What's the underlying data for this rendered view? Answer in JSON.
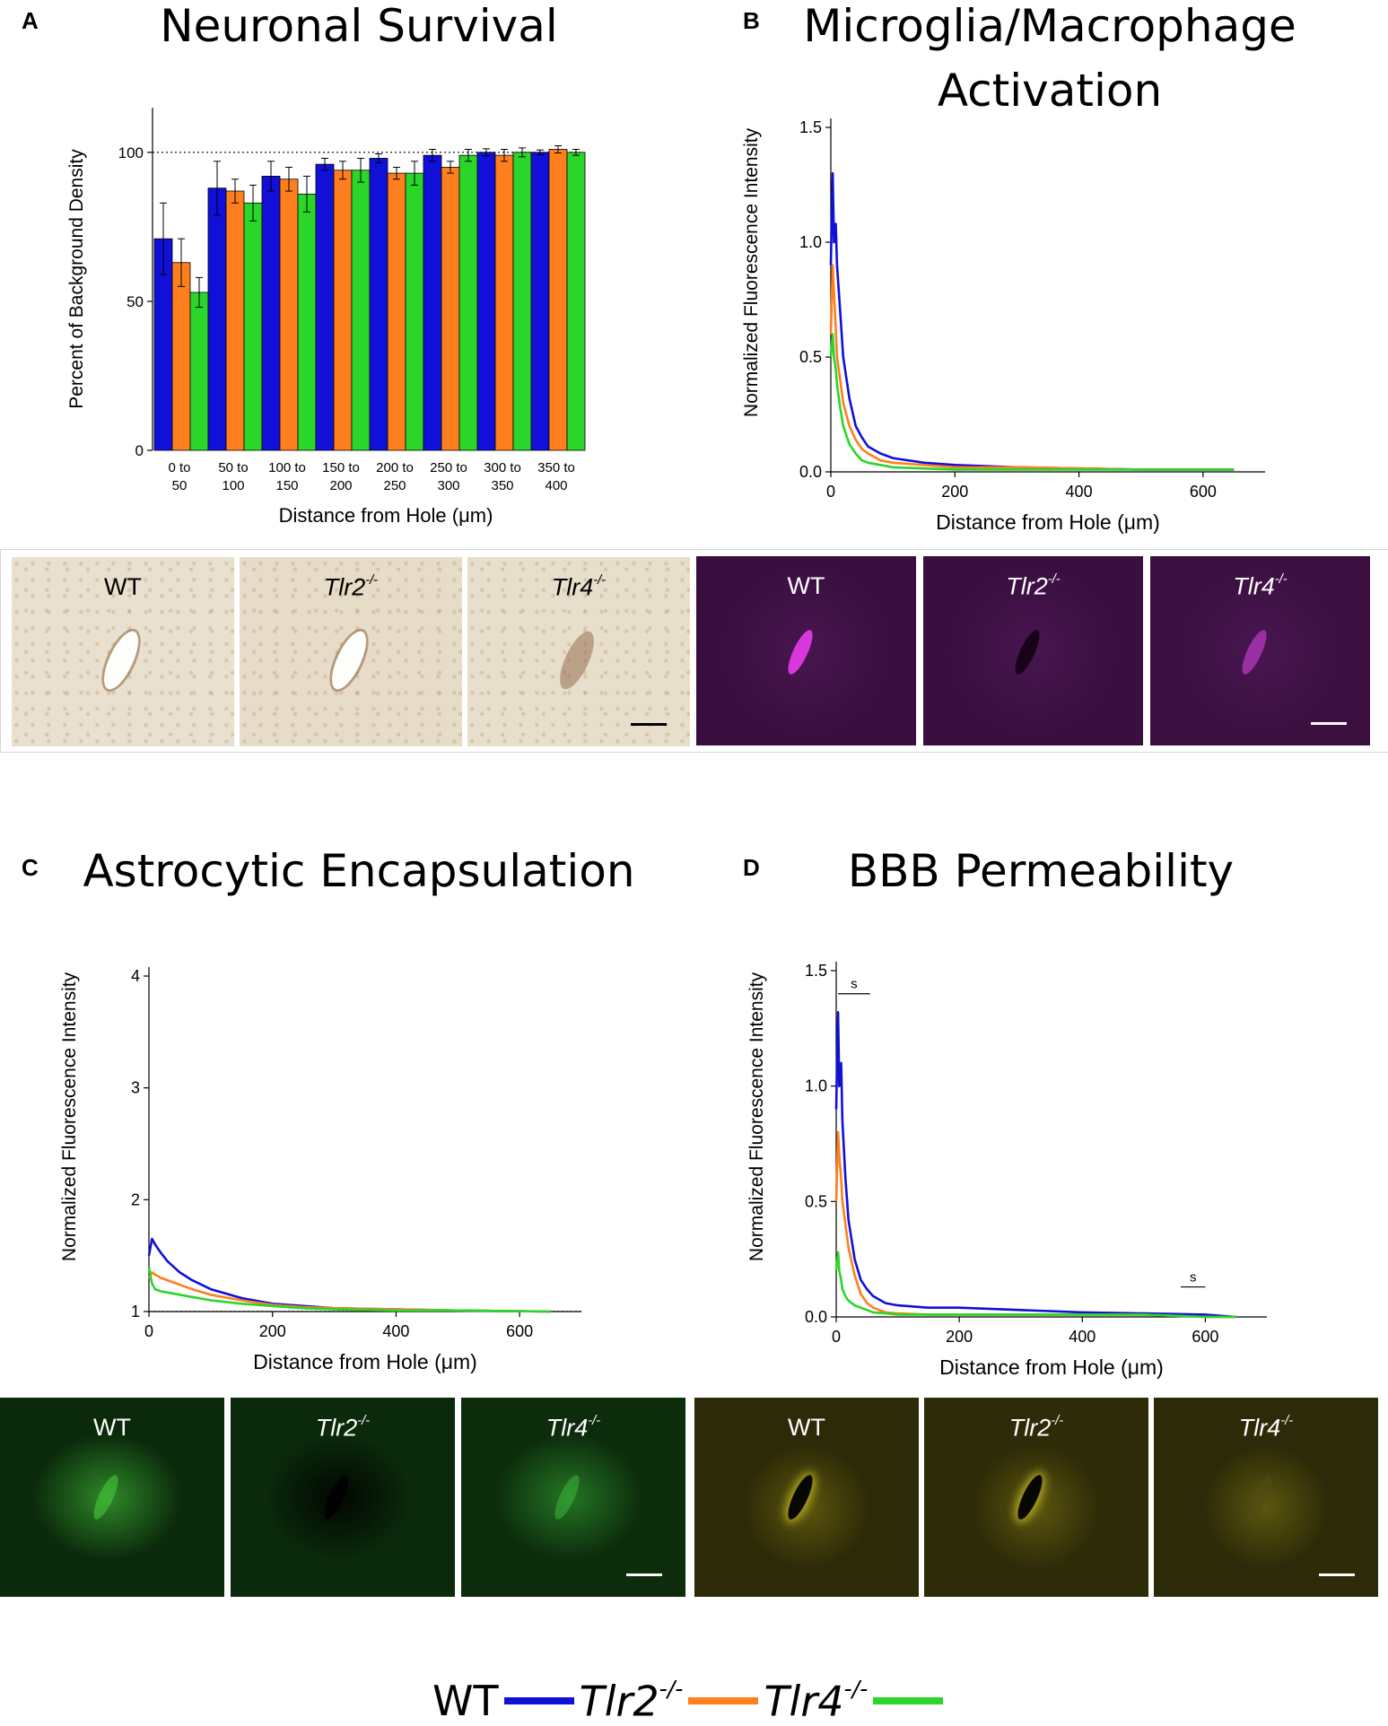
{
  "panels": {
    "A": {
      "letter": "A",
      "title": "Neuronal Survival"
    },
    "B": {
      "letter": "B",
      "title_line1": "Microglia/Macrophage",
      "title_line2": "Activation"
    },
    "C": {
      "letter": "C",
      "title": "Astrocytic Encapsulation"
    },
    "D": {
      "letter": "D",
      "title": "BBB Permeability"
    }
  },
  "genotype_labels": {
    "wt": "WT",
    "tlr2": "Tlr2",
    "tlr4": "Tlr4",
    "ko_sup": "-/-"
  },
  "colors": {
    "wt": "#1010d8",
    "tlr2": "#ff7f1e",
    "tlr4": "#2ad62a",
    "scalebar_dark": "#000000",
    "scalebar_light": "#ffffff"
  },
  "chart_data": [
    {
      "id": "A",
      "type": "bar",
      "title": "Neuronal Survival",
      "xlabel": "Distance from Hole (μm)",
      "ylabel": "Percent of Background Density",
      "ylim": [
        0,
        115
      ],
      "yticks": [
        0,
        50,
        100
      ],
      "reference_line": 100,
      "categories": [
        [
          "0 to",
          "50"
        ],
        [
          "50 to",
          "100"
        ],
        [
          "100 to",
          "150"
        ],
        [
          "150 to",
          "200"
        ],
        [
          "200 to",
          "250"
        ],
        [
          "250 to",
          "300"
        ],
        [
          "300 to",
          "350"
        ],
        [
          "350 to",
          "400"
        ]
      ],
      "series": [
        {
          "name": "WT",
          "color": "#1010d8",
          "values": [
            71,
            88,
            92,
            96,
            98,
            99,
            100,
            100
          ],
          "errors": [
            12,
            9,
            5,
            2,
            1.5,
            2,
            1.2,
            0.8
          ]
        },
        {
          "name": "Tlr2-/-",
          "color": "#ff7f1e",
          "values": [
            63,
            87,
            91,
            94,
            93,
            95,
            99,
            101
          ],
          "errors": [
            8,
            4,
            4,
            3,
            2,
            2,
            2,
            1.2
          ]
        },
        {
          "name": "Tlr4-/-",
          "color": "#2ad62a",
          "values": [
            53,
            83,
            86,
            94,
            93,
            99,
            100,
            100
          ],
          "errors": [
            5,
            6,
            6,
            4,
            4,
            2,
            1.5,
            1
          ]
        }
      ]
    },
    {
      "id": "B",
      "type": "line",
      "title": "Microglia/Macrophage Activation",
      "xlabel": "Distance from Hole (μm)",
      "ylabel": "Normalized Fluorescence Intensity",
      "xlim": [
        0,
        700
      ],
      "xticks": [
        0,
        200,
        400,
        600
      ],
      "ylim": [
        0,
        1.5
      ],
      "yticks": [
        0.0,
        0.5,
        1.0,
        1.5
      ],
      "ytick_labels": [
        "0.0",
        "0.5",
        "1.0",
        "1.5"
      ],
      "series": [
        {
          "name": "WT",
          "color": "#1010d8",
          "x": [
            0,
            3,
            5,
            8,
            10,
            15,
            20,
            30,
            40,
            50,
            60,
            80,
            100,
            150,
            200,
            300,
            400,
            500,
            650
          ],
          "y": [
            0.9,
            1.3,
            1.0,
            1.08,
            0.9,
            0.7,
            0.5,
            0.32,
            0.2,
            0.15,
            0.11,
            0.08,
            0.06,
            0.04,
            0.03,
            0.02,
            0.015,
            0.01,
            0.01
          ]
        },
        {
          "name": "Tlr2-/-",
          "color": "#ff7f1e",
          "x": [
            0,
            3,
            5,
            8,
            10,
            15,
            20,
            30,
            40,
            50,
            60,
            80,
            100,
            150,
            200,
            300,
            400,
            500,
            650
          ],
          "y": [
            0.6,
            0.9,
            0.78,
            0.62,
            0.5,
            0.4,
            0.3,
            0.2,
            0.14,
            0.1,
            0.08,
            0.05,
            0.04,
            0.03,
            0.02,
            0.02,
            0.015,
            0.01,
            0.01
          ]
        },
        {
          "name": "Tlr4-/-",
          "color": "#2ad62a",
          "x": [
            0,
            3,
            5,
            8,
            10,
            15,
            20,
            30,
            40,
            50,
            60,
            80,
            100,
            150,
            200,
            300,
            400,
            500,
            650
          ],
          "y": [
            0.5,
            0.6,
            0.5,
            0.45,
            0.38,
            0.28,
            0.2,
            0.12,
            0.08,
            0.05,
            0.04,
            0.03,
            0.02,
            0.015,
            0.01,
            0.01,
            0.01,
            0.01,
            0.01
          ]
        }
      ]
    },
    {
      "id": "C",
      "type": "line",
      "title": "Astrocytic Encapsulation",
      "xlabel": "Distance from Hole (μm)",
      "ylabel": "Normalized Fluorescence Intensity",
      "xlim": [
        0,
        700
      ],
      "xticks": [
        0,
        200,
        400,
        600
      ],
      "ylim": [
        1,
        4
      ],
      "yticks": [
        1,
        2,
        3,
        4
      ],
      "ytick_labels": [
        "1",
        "2",
        "3",
        "4"
      ],
      "reference_line": 1,
      "series": [
        {
          "name": "WT",
          "color": "#1010d8",
          "x": [
            0,
            5,
            10,
            20,
            30,
            50,
            70,
            100,
            150,
            200,
            250,
            300,
            400,
            500,
            650
          ],
          "y": [
            1.5,
            1.65,
            1.6,
            1.52,
            1.45,
            1.35,
            1.28,
            1.2,
            1.12,
            1.07,
            1.05,
            1.03,
            1.02,
            1.01,
            1.0
          ]
        },
        {
          "name": "Tlr2-/-",
          "color": "#ff7f1e",
          "x": [
            0,
            5,
            10,
            20,
            30,
            50,
            70,
            100,
            150,
            200,
            250,
            300,
            400,
            500,
            650
          ],
          "y": [
            1.3,
            1.35,
            1.33,
            1.3,
            1.28,
            1.24,
            1.2,
            1.15,
            1.1,
            1.06,
            1.04,
            1.03,
            1.02,
            1.01,
            1.0
          ]
        },
        {
          "name": "Tlr4-/-",
          "color": "#2ad62a",
          "x": [
            0,
            5,
            10,
            20,
            30,
            50,
            70,
            100,
            150,
            200,
            250,
            300,
            400,
            500,
            650
          ],
          "y": [
            1.4,
            1.25,
            1.2,
            1.18,
            1.17,
            1.15,
            1.13,
            1.1,
            1.07,
            1.05,
            1.03,
            1.02,
            1.01,
            1.01,
            1.0
          ]
        }
      ]
    },
    {
      "id": "D",
      "type": "line",
      "title": "BBB Permeability",
      "xlabel": "Distance from Hole (μm)",
      "ylabel": "Normalized Fluorescence Intensity",
      "xlim": [
        0,
        700
      ],
      "xticks": [
        0,
        200,
        400,
        600
      ],
      "ylim": [
        0,
        1.5
      ],
      "yticks": [
        0.0,
        0.5,
        1.0,
        1.5
      ],
      "ytick_labels": [
        "0.0",
        "0.5",
        "1.0",
        "1.5"
      ],
      "annotations": [
        {
          "text": "s",
          "x_start": 3,
          "x_end": 55,
          "y": 1.4
        },
        {
          "text": "s",
          "x_start": 560,
          "x_end": 600,
          "y": 0.13
        }
      ],
      "series": [
        {
          "name": "WT",
          "color": "#1010d8",
          "x": [
            0,
            3,
            5,
            8,
            10,
            15,
            20,
            30,
            40,
            50,
            60,
            80,
            100,
            150,
            200,
            300,
            400,
            500,
            600,
            650
          ],
          "y": [
            0.9,
            1.32,
            1.0,
            1.1,
            0.85,
            0.6,
            0.42,
            0.25,
            0.16,
            0.12,
            0.09,
            0.06,
            0.05,
            0.04,
            0.04,
            0.03,
            0.02,
            0.015,
            0.01,
            0.0
          ]
        },
        {
          "name": "Tlr2-/-",
          "color": "#ff7f1e",
          "x": [
            0,
            3,
            5,
            8,
            10,
            15,
            20,
            30,
            40,
            50,
            60,
            80,
            100,
            150,
            200,
            300,
            400,
            500,
            600,
            650
          ],
          "y": [
            0.5,
            0.8,
            0.7,
            0.6,
            0.5,
            0.4,
            0.3,
            0.18,
            0.1,
            0.06,
            0.04,
            0.02,
            0.015,
            0.01,
            0.01,
            0.01,
            0.01,
            0.01,
            0.0,
            0.0
          ]
        },
        {
          "name": "Tlr4-/-",
          "color": "#2ad62a",
          "x": [
            0,
            3,
            5,
            8,
            10,
            15,
            20,
            30,
            40,
            50,
            60,
            80,
            100,
            150,
            200,
            300,
            400,
            500,
            600,
            650
          ],
          "y": [
            0.2,
            0.28,
            0.2,
            0.16,
            0.12,
            0.09,
            0.07,
            0.05,
            0.04,
            0.03,
            0.02,
            0.015,
            0.01,
            0.01,
            0.01,
            0.01,
            0.01,
            0.01,
            0.0,
            0.0
          ]
        }
      ]
    }
  ],
  "image_strips": [
    {
      "name": "neuronal-staining-strip",
      "tiles": [
        {
          "label": "WT",
          "ko": false,
          "bg": "#e9e0cf",
          "spot": "rgba(255,255,255,0.95)",
          "stain": "neun"
        },
        {
          "label": "Tlr2",
          "ko": true,
          "bg": "#e6dcc8",
          "spot": "rgba(255,255,255,0.95)",
          "stain": "neun"
        },
        {
          "label": "Tlr4",
          "ko": true,
          "bg": "#e7dfcc",
          "spot": "rgba(150,110,80,0.55)",
          "stain": "neun"
        }
      ],
      "scalebar_tile": 2,
      "scalebar_color": "#000000"
    },
    {
      "name": "microglia-staining-strip",
      "tiles": [
        {
          "label": "WT",
          "ko": false,
          "bg": "#3a0f40",
          "spot": "rgba(230,60,235,0.9)",
          "stain": "iba1"
        },
        {
          "label": "Tlr2",
          "ko": true,
          "bg": "#3a0f40",
          "spot": "rgba(20,0,20,0.9)",
          "stain": "iba1"
        },
        {
          "label": "Tlr4",
          "ko": true,
          "bg": "#3b1041",
          "spot": "rgba(190,60,200,0.7)",
          "stain": "iba1"
        }
      ],
      "scalebar_tile": 2,
      "scalebar_color": "#ffffff"
    },
    {
      "name": "astrocyte-staining-strip",
      "tiles": [
        {
          "label": "WT",
          "ko": false,
          "bg": "#0b2a0b",
          "spot": "rgba(70,200,60,0.6)",
          "stain": "gfap"
        },
        {
          "label": "Tlr2",
          "ko": true,
          "bg": "#0a2a0b",
          "spot": "rgba(0,0,0,0.85)",
          "stain": "gfap"
        },
        {
          "label": "Tlr4",
          "ko": true,
          "bg": "#0c2c0c",
          "spot": "rgba(60,190,60,0.5)",
          "stain": "gfap"
        }
      ],
      "scalebar_tile": 2,
      "scalebar_color": "#ffffff"
    },
    {
      "name": "igg-staining-strip",
      "tiles": [
        {
          "label": "WT",
          "ko": false,
          "bg": "#2d2a07",
          "spot": "rgba(0,0,0,0.9)",
          "stain": "igg"
        },
        {
          "label": "Tlr2",
          "ko": true,
          "bg": "#2e2b08",
          "spot": "rgba(0,0,0,0.9)",
          "stain": "igg"
        },
        {
          "label": "Tlr4",
          "ko": true,
          "bg": "#2c2a08",
          "spot": "rgba(80,75,20,0.6)",
          "stain": "igg"
        }
      ],
      "scalebar_tile": 2,
      "scalebar_color": "#ffffff"
    }
  ]
}
